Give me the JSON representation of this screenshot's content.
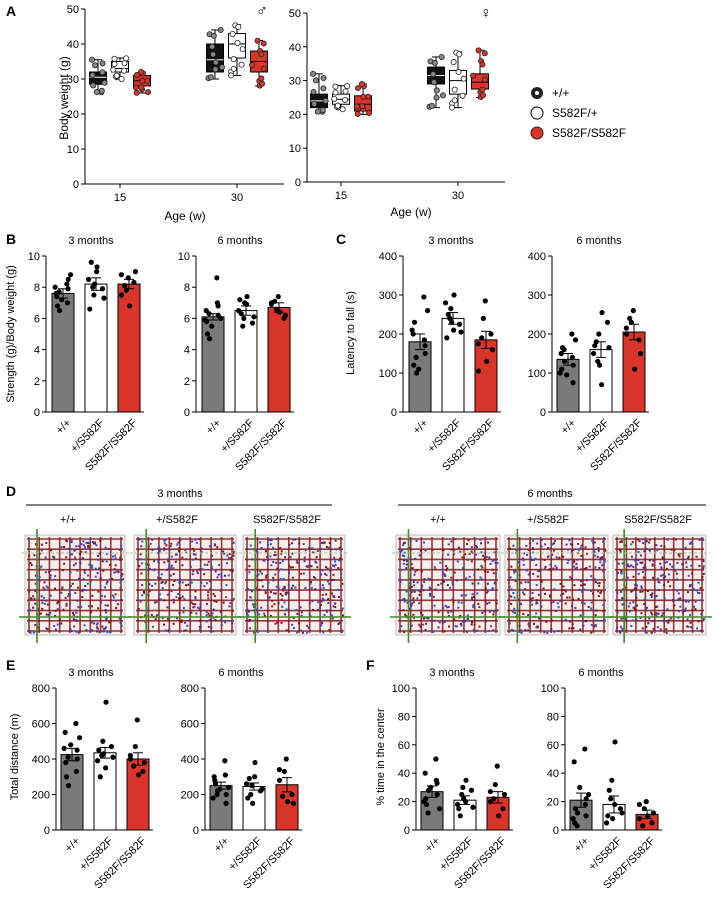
{
  "colors": {
    "wt": "#7a7a7a",
    "het": "#ffffff",
    "hom": "#d9352b",
    "dark": "#222222"
  },
  "legend": [
    "+/+",
    "S582F/+",
    "S582F/S582F"
  ],
  "genotype_ticks": [
    "+/+",
    "+/S582F",
    "S582F/S582F"
  ],
  "panels": {
    "A": {
      "letter": "A",
      "male_symbol": "♂",
      "female_symbol": "♀",
      "ylabel": "Body weight (g)",
      "xlabel": "Age (w)",
      "xticks": [
        "15",
        "30"
      ]
    },
    "B": {
      "letter": "B",
      "ylabel": "Strength (g)/Body weight (g)",
      "titles": [
        "3 months",
        "6 months"
      ]
    },
    "C": {
      "letter": "C",
      "ylabel": "Latency to fall (s)",
      "titles": [
        "3 months",
        "6 months"
      ]
    },
    "D": {
      "letter": "D",
      "group_titles": [
        "3 months",
        "6 months"
      ],
      "labels": [
        "+/+",
        "+/S582F",
        "S582F/S582F",
        "+/+",
        "+/S582F",
        "S582F/S582F"
      ]
    },
    "E": {
      "letter": "E",
      "ylabel": "Total distance (m)",
      "titles": [
        "3 months",
        "6 months"
      ]
    },
    "F": {
      "letter": "F",
      "ylabel": "% time in the center",
      "titles": [
        "3 months",
        "6 months"
      ]
    }
  },
  "chart_data": [
    {
      "id": "A-male",
      "type": "box",
      "xlabel": "Age (w)",
      "ylabel": "Body weight (g)",
      "ylim": [
        0,
        50
      ],
      "yticks": [
        0,
        10,
        20,
        30,
        40,
        50
      ],
      "categories": [
        "15",
        "30"
      ],
      "series": [
        {
          "name": "+/+",
          "boxes": [
            {
              "min": 26,
              "q1": 28.5,
              "median": 30.5,
              "q3": 32,
              "max": 35.5
            },
            {
              "min": 30,
              "q1": 32,
              "median": 35.5,
              "q3": 40,
              "max": 44
            }
          ]
        },
        {
          "name": "S582F/+",
          "boxes": [
            {
              "min": 30,
              "q1": 32,
              "median": 33,
              "q3": 35,
              "max": 36
            },
            {
              "min": 31,
              "q1": 36,
              "median": 40,
              "q3": 43,
              "max": 45.5
            }
          ]
        },
        {
          "name": "S582F/S582F",
          "boxes": [
            {
              "min": 26,
              "q1": 28,
              "median": 29.5,
              "q3": 31,
              "max": 32
            },
            {
              "min": 28,
              "q1": 32,
              "median": 35,
              "q3": 38,
              "max": 41
            }
          ]
        }
      ]
    },
    {
      "id": "A-female",
      "type": "box",
      "xlabel": "Age (w)",
      "ylabel": "",
      "ylim": [
        0,
        50
      ],
      "yticks": [
        0,
        10,
        20,
        30,
        40,
        50
      ],
      "categories": [
        "15",
        "30"
      ],
      "series": [
        {
          "name": "+/+",
          "boxes": [
            {
              "min": 20.5,
              "q1": 22,
              "median": 24,
              "q3": 26,
              "max": 32
            },
            {
              "min": 22,
              "q1": 29,
              "median": 31.5,
              "q3": 34,
              "max": 37
            }
          ]
        },
        {
          "name": "S582F/+",
          "boxes": [
            {
              "min": 21.5,
              "q1": 23,
              "median": 24.5,
              "q3": 26,
              "max": 28.5
            },
            {
              "min": 22,
              "q1": 26,
              "median": 30,
              "q3": 33,
              "max": 38.5
            }
          ]
        },
        {
          "name": "S582F/S582F",
          "boxes": [
            {
              "min": 20,
              "q1": 21,
              "median": 23,
              "q3": 25.5,
              "max": 29
            },
            {
              "min": 25,
              "q1": 27.5,
              "median": 29.5,
              "q3": 32,
              "max": 39
            }
          ]
        }
      ]
    },
    {
      "id": "B-3m",
      "type": "bar",
      "title": "3 months",
      "ylabel": "Strength (g)/Body weight (g)",
      "ylim": [
        0,
        10
      ],
      "yticks": [
        0,
        2,
        4,
        6,
        8,
        10
      ],
      "categories": [
        "+/+",
        "+/S582F",
        "S582F/S582F"
      ],
      "values": [
        7.6,
        8.2,
        8.2
      ],
      "sem": [
        0.3,
        0.4,
        0.3
      ],
      "points": [
        [
          8.2,
          7.6,
          7.2,
          8.5,
          6.8,
          7.9,
          7.4,
          8.8,
          6.5,
          7.0,
          8.0,
          7.7
        ],
        [
          9.3,
          7.5,
          8.0,
          9.0,
          6.6,
          8.5,
          7.9,
          9.6,
          8.2,
          7.3
        ],
        [
          8.6,
          7.8,
          9.0,
          7.5,
          8.3,
          8.8,
          6.8,
          8.1
        ]
      ]
    },
    {
      "id": "B-6m",
      "type": "bar",
      "title": "6 months",
      "ylabel": "",
      "ylim": [
        0,
        10
      ],
      "yticks": [
        0,
        2,
        4,
        6,
        8,
        10
      ],
      "categories": [
        "+/+",
        "+/S582F",
        "S582F/S582F"
      ],
      "values": [
        6.1,
        6.5,
        6.7
      ],
      "sem": [
        0.2,
        0.3,
        0.3
      ],
      "points": [
        [
          8.6,
          6.5,
          5.5,
          6.2,
          5.0,
          6.8,
          5.8,
          6.0,
          4.7,
          7.0,
          5.9,
          6.3
        ],
        [
          7.4,
          6.0,
          5.5,
          6.9,
          7.2,
          6.5,
          5.7,
          6.3,
          7.0,
          6.1
        ],
        [
          7.4,
          6.6,
          6.2,
          7.0,
          6.0,
          6.9,
          6.4,
          7.1
        ]
      ]
    },
    {
      "id": "C-3m",
      "type": "bar",
      "title": "3 months",
      "ylabel": "Latency to fall (s)",
      "ylim": [
        0,
        400
      ],
      "yticks": [
        0,
        100,
        200,
        300,
        400
      ],
      "categories": [
        "+/+",
        "+/S582F",
        "S582F/S582F"
      ],
      "values": [
        180,
        240,
        185
      ],
      "sem": [
        20,
        15,
        22
      ],
      "points": [
        [
          295,
          200,
          110,
          150,
          230,
          170,
          120,
          260,
          100,
          185,
          210,
          140
        ],
        [
          300,
          265,
          240,
          210,
          190,
          280,
          225,
          250,
          230,
          205
        ],
        [
          285,
          240,
          160,
          105,
          200,
          175,
          130,
          190
        ]
      ]
    },
    {
      "id": "C-6m",
      "type": "bar",
      "title": "6 months",
      "ylabel": "",
      "ylim": [
        0,
        400
      ],
      "yticks": [
        0,
        100,
        200,
        300,
        400
      ],
      "categories": [
        "+/+",
        "+/S582F",
        "S582F/S582F"
      ],
      "values": [
        135,
        160,
        205
      ],
      "sem": [
        15,
        20,
        20
      ],
      "points": [
        [
          200,
          150,
          95,
          120,
          165,
          75,
          110,
          185,
          130,
          140,
          100,
          160
        ],
        [
          255,
          200,
          130,
          70,
          170,
          150,
          230,
          180,
          120,
          165
        ],
        [
          260,
          230,
          150,
          200,
          185,
          215,
          110,
          240
        ]
      ]
    },
    {
      "id": "E-3m",
      "type": "bar",
      "title": "3 months",
      "ylabel": "Total distance (m)",
      "ylim": [
        0,
        800
      ],
      "yticks": [
        0,
        200,
        400,
        600,
        800
      ],
      "categories": [
        "+/+",
        "+/S582F",
        "S582F/S582F"
      ],
      "values": [
        425,
        435,
        400
      ],
      "sem": [
        35,
        30,
        35
      ],
      "points": [
        [
          600,
          550,
          480,
          400,
          300,
          450,
          380,
          520,
          250,
          330,
          460,
          410
        ],
        [
          720,
          500,
          420,
          350,
          450,
          390,
          470,
          300,
          430,
          410
        ],
        [
          620,
          470,
          380,
          400,
          330,
          420,
          310,
          360
        ]
      ]
    },
    {
      "id": "E-6m",
      "type": "bar",
      "title": "6 months",
      "ylabel": "",
      "ylim": [
        0,
        800
      ],
      "yticks": [
        0,
        200,
        400,
        600,
        800
      ],
      "categories": [
        "+/+",
        "+/S582F",
        "S582F/S582F"
      ],
      "values": [
        250,
        245,
        255
      ],
      "sem": [
        20,
        20,
        40
      ],
      "points": [
        [
          390,
          300,
          230,
          200,
          260,
          150,
          280,
          240,
          220,
          310,
          180,
          200
        ],
        [
          380,
          250,
          200,
          300,
          180,
          260,
          220,
          290,
          150,
          230
        ],
        [
          400,
          330,
          150,
          280,
          200,
          340,
          160,
          190
        ]
      ]
    },
    {
      "id": "F-3m",
      "type": "bar",
      "title": "3 months",
      "ylabel": "% time in the center",
      "ylim": [
        0,
        100
      ],
      "yticks": [
        0,
        20,
        40,
        60,
        80,
        100
      ],
      "categories": [
        "+/+",
        "+/S582F",
        "S582F/S582F"
      ],
      "values": [
        27,
        21,
        23
      ],
      "sem": [
        4,
        3,
        4
      ],
      "points": [
        [
          50,
          40,
          30,
          25,
          18,
          33,
          22,
          15,
          28,
          35,
          20,
          12
        ],
        [
          35,
          30,
          25,
          20,
          15,
          18,
          28,
          10,
          22,
          16
        ],
        [
          45,
          32,
          25,
          20,
          15,
          27,
          10,
          22
        ]
      ]
    },
    {
      "id": "F-6m",
      "type": "bar",
      "title": "6 months",
      "ylabel": "",
      "ylim": [
        0,
        100
      ],
      "yticks": [
        0,
        20,
        40,
        60,
        80,
        100
      ],
      "categories": [
        "+/+",
        "+/S582F",
        "S582F/S582F"
      ],
      "values": [
        21,
        18,
        11
      ],
      "sem": [
        5,
        6,
        3
      ],
      "points": [
        [
          57,
          48,
          30,
          22,
          15,
          10,
          5,
          25,
          12,
          18,
          8,
          3
        ],
        [
          62,
          35,
          22,
          18,
          10,
          5,
          15,
          28,
          8,
          12
        ],
        [
          20,
          15,
          12,
          8,
          5,
          18,
          10,
          3
        ]
      ]
    }
  ]
}
